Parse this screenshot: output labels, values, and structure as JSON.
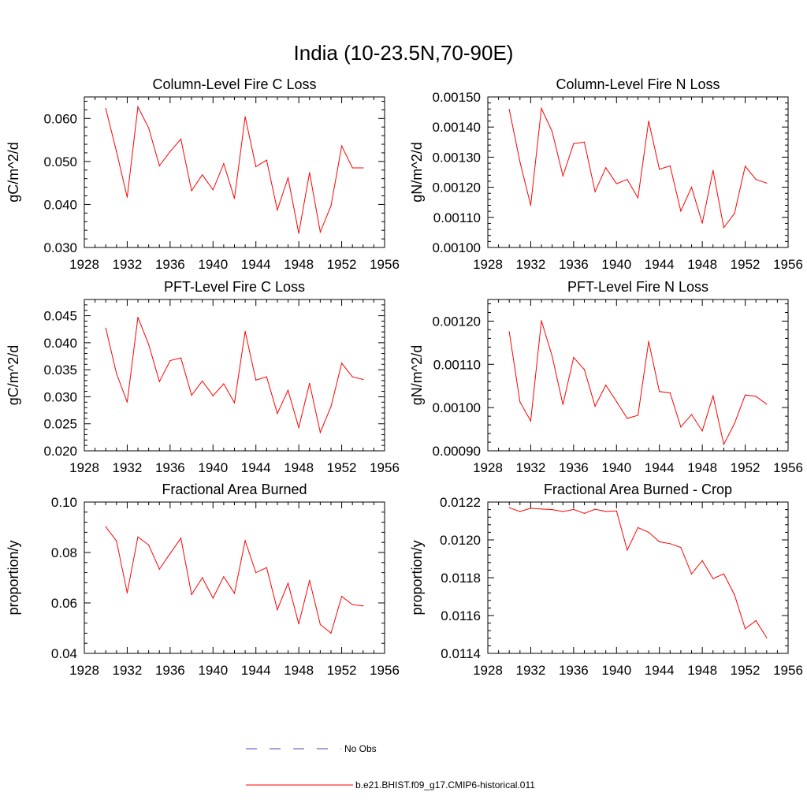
{
  "main_title": "India (10-23.5N,70-90E)",
  "legend": {
    "obs_label": "No Obs",
    "obs_color": "#4b4bb4",
    "model_label": "b.e21.BHIST.f09_g17.CMIP6-historical.011",
    "model_color": "#ff0000"
  },
  "chart_data": [
    {
      "type": "line",
      "title": "Column-Level Fire C Loss",
      "ylabel": "gC/m^2/d",
      "xlim": [
        1928,
        1956
      ],
      "ylim": [
        0.03,
        0.065
      ],
      "xticks": [
        "1928",
        "1932",
        "1936",
        "1940",
        "1944",
        "1948",
        "1952",
        "1956"
      ],
      "yticks": [
        "0.030",
        "0.040",
        "0.050",
        "0.060"
      ],
      "x": [
        1930,
        1931,
        1932,
        1933,
        1934,
        1935,
        1936,
        1937,
        1938,
        1939,
        1940,
        1941,
        1942,
        1943,
        1944,
        1945,
        1946,
        1947,
        1948,
        1949,
        1950,
        1951,
        1952,
        1953,
        1954
      ],
      "series": [
        {
          "color": "#ff0000",
          "values": [
            0.0623,
            0.0523,
            0.0417,
            0.0627,
            0.0578,
            0.049,
            0.0523,
            0.0552,
            0.0432,
            0.0469,
            0.0434,
            0.0495,
            0.0414,
            0.0604,
            0.0488,
            0.0503,
            0.0387,
            0.0462,
            0.0333,
            0.0474,
            0.0336,
            0.0397,
            0.0536,
            0.0485,
            0.0485
          ]
        }
      ]
    },
    {
      "type": "line",
      "title": "Column-Level Fire N Loss",
      "ylabel": "gN/m^2/d",
      "xlim": [
        1928,
        1956
      ],
      "ylim": [
        0.001,
        0.0015
      ],
      "xticks": [
        "1928",
        "1932",
        "1936",
        "1940",
        "1944",
        "1948",
        "1952",
        "1956"
      ],
      "yticks": [
        "0.00100",
        "0.00110",
        "0.00120",
        "0.00130",
        "0.00140",
        "0.00150"
      ],
      "x": [
        1930,
        1931,
        1932,
        1933,
        1934,
        1935,
        1936,
        1937,
        1938,
        1939,
        1940,
        1941,
        1942,
        1943,
        1944,
        1945,
        1946,
        1947,
        1948,
        1949,
        1950,
        1951,
        1952,
        1953,
        1954
      ],
      "series": [
        {
          "color": "#ff0000",
          "values": [
            0.001458,
            0.001284,
            0.00114,
            0.001462,
            0.001385,
            0.001238,
            0.001345,
            0.00135,
            0.001185,
            0.001265,
            0.001212,
            0.001226,
            0.001165,
            0.00142,
            0.00126,
            0.001271,
            0.001121,
            0.0012,
            0.001081,
            0.001256,
            0.001066,
            0.001113,
            0.00127,
            0.001226,
            0.001214
          ]
        }
      ]
    },
    {
      "type": "line",
      "title": "PFT-Level Fire C Loss",
      "ylabel": "gC/m^2/d",
      "xlim": [
        1928,
        1956
      ],
      "ylim": [
        0.02,
        0.048
      ],
      "xticks": [
        "1928",
        "1932",
        "1936",
        "1940",
        "1944",
        "1948",
        "1952",
        "1956"
      ],
      "yticks": [
        "0.020",
        "0.025",
        "0.030",
        "0.035",
        "0.040",
        "0.045"
      ],
      "x": [
        1930,
        1931,
        1932,
        1933,
        1934,
        1935,
        1936,
        1937,
        1938,
        1939,
        1940,
        1941,
        1942,
        1943,
        1944,
        1945,
        1946,
        1947,
        1948,
        1949,
        1950,
        1951,
        1952,
        1953,
        1954
      ],
      "series": [
        {
          "color": "#ff0000",
          "values": [
            0.0427,
            0.0343,
            0.029,
            0.0447,
            0.0397,
            0.0328,
            0.0367,
            0.0372,
            0.0303,
            0.0329,
            0.0302,
            0.0324,
            0.0289,
            0.0421,
            0.0331,
            0.0337,
            0.0269,
            0.0312,
            0.0243,
            0.0325,
            0.0234,
            0.0282,
            0.0362,
            0.0337,
            0.0332
          ]
        }
      ]
    },
    {
      "type": "line",
      "title": "PFT-Level Fire N Loss",
      "ylabel": "gN/m^2/d",
      "xlim": [
        1928,
        1956
      ],
      "ylim": [
        0.0009,
        0.00125
      ],
      "xticks": [
        "1928",
        "1932",
        "1936",
        "1940",
        "1944",
        "1948",
        "1952",
        "1956"
      ],
      "yticks": [
        "0.00090",
        "0.00100",
        "0.00110",
        "0.00120"
      ],
      "x": [
        1930,
        1931,
        1932,
        1933,
        1934,
        1935,
        1936,
        1937,
        1938,
        1939,
        1940,
        1941,
        1942,
        1943,
        1944,
        1945,
        1946,
        1947,
        1948,
        1949,
        1950,
        1951,
        1952,
        1953,
        1954
      ],
      "series": [
        {
          "color": "#ff0000",
          "values": [
            0.001175,
            0.001013,
            0.000969,
            0.001201,
            0.001119,
            0.001007,
            0.001116,
            0.001088,
            0.001003,
            0.001052,
            0.001014,
            0.000975,
            0.000982,
            0.001153,
            0.001037,
            0.001034,
            0.000955,
            0.000984,
            0.000946,
            0.001027,
            0.000915,
            0.000963,
            0.001029,
            0.001026,
            0.001008
          ]
        }
      ]
    },
    {
      "type": "line",
      "title": "Fractional Area Burned",
      "ylabel": "proportion/y",
      "xlim": [
        1928,
        1956
      ],
      "ylim": [
        0.04,
        0.1
      ],
      "xticks": [
        "1928",
        "1932",
        "1936",
        "1940",
        "1944",
        "1948",
        "1952",
        "1956"
      ],
      "yticks": [
        "0.04",
        "0.06",
        "0.08",
        "0.10"
      ],
      "x": [
        1930,
        1931,
        1932,
        1933,
        1934,
        1935,
        1936,
        1937,
        1938,
        1939,
        1940,
        1941,
        1942,
        1943,
        1944,
        1945,
        1946,
        1947,
        1948,
        1949,
        1950,
        1951,
        1952,
        1953,
        1954
      ],
      "series": [
        {
          "color": "#ff0000",
          "values": [
            0.0902,
            0.0846,
            0.064,
            0.0862,
            0.083,
            0.0734,
            0.0796,
            0.0857,
            0.0633,
            0.07,
            0.0619,
            0.0704,
            0.0638,
            0.0847,
            0.072,
            0.074,
            0.0573,
            0.0678,
            0.0517,
            0.0689,
            0.0515,
            0.048,
            0.0626,
            0.0593,
            0.0588
          ]
        }
      ]
    },
    {
      "type": "line",
      "title": "Fractional Area Burned - Crop",
      "ylabel": "proportion/y",
      "xlim": [
        1928,
        1956
      ],
      "ylim": [
        0.0114,
        0.0122
      ],
      "xticks": [
        "1928",
        "1932",
        "1936",
        "1940",
        "1944",
        "1948",
        "1952",
        "1956"
      ],
      "yticks": [
        "0.0114",
        "0.0116",
        "0.0118",
        "0.0120",
        "0.0122"
      ],
      "x": [
        1930,
        1931,
        1932,
        1933,
        1934,
        1935,
        1936,
        1937,
        1938,
        1939,
        1940,
        1941,
        1942,
        1943,
        1944,
        1945,
        1946,
        1947,
        1948,
        1949,
        1950,
        1951,
        1952,
        1953,
        1954
      ],
      "series": [
        {
          "color": "#ff0000",
          "values": [
            0.01217,
            0.01215,
            0.012167,
            0.012163,
            0.01216,
            0.01215,
            0.012161,
            0.01214,
            0.012162,
            0.01215,
            0.012153,
            0.011946,
            0.012065,
            0.01204,
            0.01199,
            0.01198,
            0.01196,
            0.01182,
            0.01189,
            0.011795,
            0.01182,
            0.01171,
            0.01153,
            0.011573,
            0.011483
          ]
        }
      ]
    }
  ]
}
